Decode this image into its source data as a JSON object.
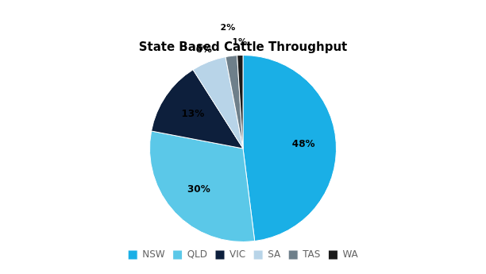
{
  "chart_data": {
    "type": "pie",
    "title": "State Based Cattle Throughput",
    "categories": [
      "NSW",
      "QLD",
      "VIC",
      "SA",
      "TAS",
      "WA"
    ],
    "values": [
      48,
      30,
      13,
      6,
      2,
      1
    ],
    "value_labels": [
      "48%",
      "30%",
      "13%",
      "6%",
      "2%",
      "1%"
    ],
    "colors": [
      "#1AAFE6",
      "#5BC8E8",
      "#0D1F3C",
      "#B8D4E8",
      "#6E7F8A",
      "#1A1A1A"
    ],
    "legend": "bottom",
    "data_labels": true
  }
}
